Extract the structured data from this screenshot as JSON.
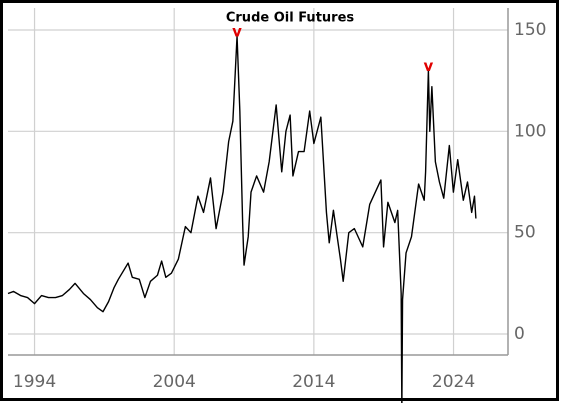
{
  "chart_data": {
    "type": "line",
    "title": "Crude Oil Futures",
    "x": [
      1992.1,
      1992.5,
      1993,
      1993.5,
      1994,
      1994.5,
      1995,
      1995.5,
      1996,
      1996.5,
      1996.9,
      1997.5,
      1998,
      1998.5,
      1998.9,
      1999.3,
      1999.7,
      2000,
      2000.7,
      2001,
      2001.5,
      2001.9,
      2002.3,
      2002.8,
      2003.1,
      2003.4,
      2003.8,
      2004.3,
      2004.8,
      2005.2,
      2005.7,
      2006.1,
      2006.6,
      2007.0,
      2007.5,
      2007.9,
      2008.2,
      2008.5,
      2008.7,
      2008.9,
      2009.0,
      2009.3,
      2009.5,
      2009.9,
      2010.4,
      2010.8,
      2011.3,
      2011.7,
      2012.0,
      2012.3,
      2012.5,
      2012.9,
      2013.3,
      2013.7,
      2014.0,
      2014.5,
      2014.9,
      2015.1,
      2015.4,
      2015.9,
      2016.1,
      2016.5,
      2016.9,
      2017.5,
      2018.0,
      2018.8,
      2018.99,
      2019.3,
      2019.8,
      2020.0,
      2020.25,
      2020.3,
      2020.35,
      2020.6,
      2020.99,
      2021.5,
      2021.9,
      2022.0,
      2022.2,
      2022.3,
      2022.45,
      2022.7,
      2022.99,
      2023.3,
      2023.7,
      2023.99,
      2024.3,
      2024.7,
      2025.0,
      2025.3,
      2025.5,
      2025.6
    ],
    "values": [
      20,
      21,
      19,
      18,
      15,
      19,
      18,
      18,
      19,
      22,
      25,
      20,
      17,
      13,
      11,
      16,
      23,
      27,
      35,
      28,
      27,
      18,
      26,
      29,
      36,
      28,
      30,
      37,
      53,
      50,
      68,
      60,
      77,
      52,
      70,
      95,
      105,
      147,
      110,
      55,
      34,
      48,
      70,
      78,
      70,
      85,
      113,
      80,
      100,
      108,
      78,
      90,
      90,
      110,
      94,
      107,
      60,
      45,
      61,
      37,
      26,
      50,
      52,
      43,
      64,
      76,
      43,
      65,
      55,
      61,
      20,
      -37,
      17,
      40,
      48,
      74,
      66,
      80,
      130,
      100,
      122,
      85,
      75,
      67,
      93,
      70,
      86,
      66,
      75,
      60,
      68,
      57
    ],
    "color": "#000000",
    "xlim": [
      1992.1,
      2027.9
    ],
    "xticks": [
      1994,
      2004,
      2014,
      2024
    ],
    "ylim": [
      -10,
      160
    ],
    "yticks": [
      0,
      50,
      100,
      150
    ],
    "grid": true,
    "annotations": [
      {
        "text": "v",
        "x": 2008.5,
        "y": 147
      },
      {
        "text": "v",
        "x": 2022.2,
        "y": 130
      }
    ]
  }
}
